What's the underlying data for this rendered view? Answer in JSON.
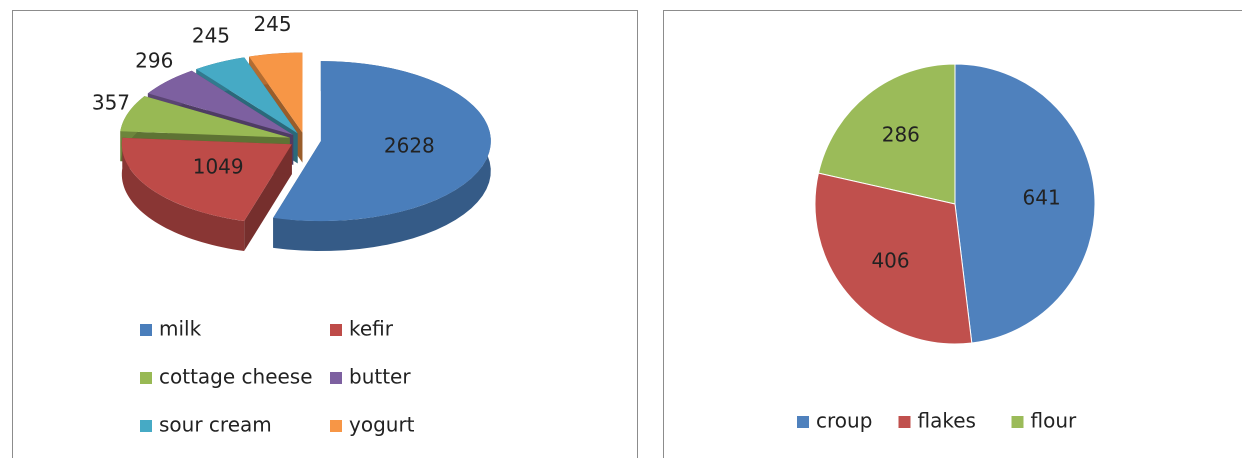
{
  "chart_data": [
    {
      "type": "pie3d",
      "categories": [
        "milk",
        "kefir",
        "cottage cheese",
        "butter",
        "sour cream",
        "yogurt"
      ],
      "values": [
        2628,
        1049,
        357,
        296,
        245,
        245
      ],
      "colors": [
        "#4a7ebb",
        "#be4b48",
        "#98b954",
        "#7d60a0",
        "#46aac5",
        "#f79646"
      ],
      "legend": "bottom"
    },
    {
      "type": "pie",
      "categories": [
        "croup",
        "flakes",
        "flour"
      ],
      "values": [
        641,
        406,
        286
      ],
      "colors": [
        "#4f81bd",
        "#c0504d",
        "#9bbb59"
      ],
      "legend": "bottom"
    }
  ]
}
